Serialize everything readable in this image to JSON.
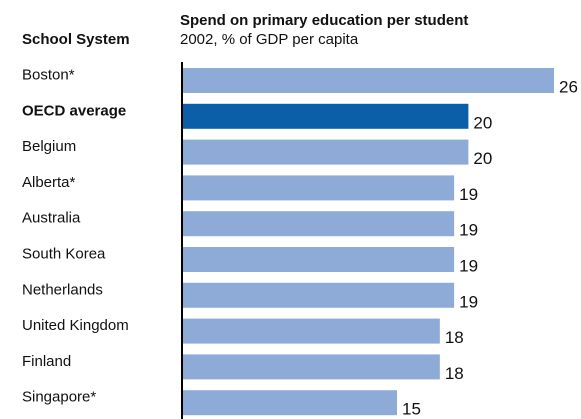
{
  "chart_data": {
    "type": "bar",
    "orientation": "horizontal",
    "title": "Spend on primary education per student",
    "subtitle": "2002, % of GDP per capita",
    "category_header": "School System",
    "categories": [
      "Boston*",
      "OECD average",
      "Belgium",
      "Alberta*",
      "Australia",
      "South Korea",
      "Netherlands",
      "United Kingdom",
      "Finland",
      "Singapore*"
    ],
    "values": [
      26,
      20,
      20,
      19,
      19,
      19,
      19,
      18,
      18,
      15
    ],
    "highlight_category": "OECD average",
    "colors": {
      "bar": "#8eabd8",
      "highlight": "#0b5ea8",
      "axis": "#000000",
      "text": "#111111"
    },
    "xlim": [
      0,
      26
    ],
    "grid": false,
    "legend": "none"
  }
}
